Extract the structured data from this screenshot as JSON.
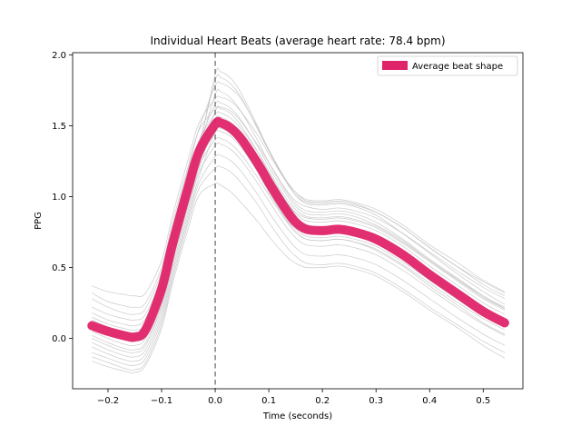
{
  "chart_data": {
    "type": "line",
    "title": "Individual Heart Beats (average heart rate: 78.4 bpm)",
    "xlabel": "Time (seconds)",
    "ylabel": "PPG",
    "xlim": [
      -0.266,
      0.574
    ],
    "ylim": [
      -0.355,
      2.015
    ],
    "xticks": [
      -0.2,
      -0.1,
      0.0,
      0.1,
      0.2,
      0.3,
      0.4,
      0.5
    ],
    "xtick_labels": [
      "−0.2",
      "−0.1",
      "0.0",
      "0.1",
      "0.2",
      "0.3",
      "0.4",
      "0.5"
    ],
    "yticks": [
      0.0,
      0.5,
      1.0,
      1.5,
      2.0
    ],
    "ytick_labels": [
      "0.0",
      "0.5",
      "1.0",
      "1.5",
      "2.0"
    ],
    "grid": false,
    "legend_position": "top-right",
    "vline": {
      "x": 0.0,
      "style": "dashed",
      "color": "#808080"
    },
    "colors": {
      "average": "#e0246a",
      "individual": "#bdbdbd"
    },
    "average": {
      "name": "Average beat shape",
      "x": [
        -0.23,
        -0.2,
        -0.17,
        -0.15,
        -0.13,
        -0.1,
        -0.08,
        -0.05,
        -0.03,
        0.0,
        0.01,
        0.03,
        0.05,
        0.08,
        0.1,
        0.13,
        0.15,
        0.17,
        0.2,
        0.23,
        0.26,
        0.3,
        0.35,
        0.4,
        0.45,
        0.5,
        0.54
      ],
      "y": [
        0.09,
        0.05,
        0.02,
        0.01,
        0.06,
        0.35,
        0.66,
        1.07,
        1.32,
        1.51,
        1.52,
        1.48,
        1.4,
        1.23,
        1.1,
        0.92,
        0.82,
        0.77,
        0.76,
        0.77,
        0.75,
        0.7,
        0.59,
        0.45,
        0.32,
        0.19,
        0.11
      ]
    },
    "individual_beats": {
      "x": [
        -0.23,
        -0.2,
        -0.17,
        -0.15,
        -0.13,
        -0.1,
        -0.08,
        -0.05,
        -0.03,
        0.0,
        0.01,
        0.03,
        0.05,
        0.08,
        0.1,
        0.13,
        0.15,
        0.17,
        0.2,
        0.23,
        0.26,
        0.3,
        0.35,
        0.4,
        0.45,
        0.5,
        0.54
      ],
      "beats": [
        [
          0.37,
          0.33,
          0.31,
          0.3,
          0.32,
          0.55,
          0.86,
          1.27,
          1.52,
          1.69,
          1.7,
          1.67,
          1.59,
          1.43,
          1.3,
          1.12,
          1.03,
          0.98,
          0.97,
          0.98,
          0.96,
          0.91,
          0.8,
          0.66,
          0.54,
          0.41,
          0.33
        ],
        [
          0.32,
          0.26,
          0.23,
          0.22,
          0.25,
          0.5,
          0.81,
          1.22,
          1.47,
          1.62,
          1.63,
          1.6,
          1.52,
          1.36,
          1.24,
          1.06,
          0.97,
          0.93,
          0.91,
          0.92,
          0.9,
          0.85,
          0.74,
          0.61,
          0.48,
          0.36,
          0.28
        ],
        [
          0.28,
          0.22,
          0.18,
          0.17,
          0.21,
          0.47,
          0.78,
          1.2,
          1.48,
          1.78,
          1.8,
          1.76,
          1.68,
          1.48,
          1.33,
          1.13,
          1.03,
          0.97,
          0.96,
          0.97,
          0.95,
          0.89,
          0.78,
          0.64,
          0.51,
          0.38,
          0.3
        ],
        [
          0.22,
          0.17,
          0.14,
          0.13,
          0.17,
          0.43,
          0.74,
          1.15,
          1.4,
          1.58,
          1.59,
          1.55,
          1.47,
          1.31,
          1.18,
          1.0,
          0.91,
          0.86,
          0.85,
          0.86,
          0.84,
          0.79,
          0.68,
          0.55,
          0.42,
          0.3,
          0.22
        ],
        [
          0.18,
          0.13,
          0.1,
          0.09,
          0.14,
          0.4,
          0.71,
          1.12,
          1.38,
          1.65,
          1.66,
          1.62,
          1.53,
          1.35,
          1.21,
          1.03,
          0.93,
          0.88,
          0.87,
          0.88,
          0.86,
          0.8,
          0.69,
          0.55,
          0.42,
          0.29,
          0.21
        ],
        [
          0.15,
          0.1,
          0.07,
          0.06,
          0.1,
          0.37,
          0.68,
          1.09,
          1.35,
          1.55,
          1.56,
          1.52,
          1.44,
          1.28,
          1.15,
          0.98,
          0.89,
          0.85,
          0.84,
          0.85,
          0.83,
          0.78,
          0.67,
          0.54,
          0.41,
          0.28,
          0.2
        ],
        [
          0.12,
          0.07,
          0.04,
          0.03,
          0.07,
          0.34,
          0.65,
          1.06,
          1.33,
          1.72,
          1.74,
          1.69,
          1.59,
          1.39,
          1.24,
          1.05,
          0.95,
          0.9,
          0.89,
          0.9,
          0.88,
          0.82,
          0.7,
          0.56,
          0.43,
          0.3,
          0.21
        ],
        [
          0.1,
          0.05,
          0.02,
          0.0,
          0.05,
          0.32,
          0.63,
          1.04,
          1.3,
          1.48,
          1.49,
          1.45,
          1.37,
          1.2,
          1.08,
          0.9,
          0.81,
          0.76,
          0.75,
          0.76,
          0.74,
          0.69,
          0.58,
          0.45,
          0.32,
          0.2,
          0.12
        ],
        [
          0.08,
          0.03,
          0.0,
          -0.02,
          0.03,
          0.3,
          0.61,
          1.02,
          1.28,
          1.6,
          1.62,
          1.58,
          1.49,
          1.31,
          1.17,
          0.98,
          0.88,
          0.83,
          0.82,
          0.83,
          0.81,
          0.76,
          0.65,
          0.51,
          0.38,
          0.25,
          0.17
        ],
        [
          0.05,
          0.0,
          -0.04,
          -0.05,
          0.0,
          0.27,
          0.58,
          0.99,
          1.25,
          1.45,
          1.46,
          1.42,
          1.34,
          1.17,
          1.04,
          0.86,
          0.77,
          0.72,
          0.71,
          0.72,
          0.7,
          0.65,
          0.54,
          0.41,
          0.28,
          0.16,
          0.08
        ],
        [
          0.02,
          -0.03,
          -0.07,
          -0.08,
          -0.03,
          0.24,
          0.55,
          0.96,
          1.22,
          1.4,
          1.41,
          1.37,
          1.29,
          1.13,
          1.01,
          0.84,
          0.75,
          0.7,
          0.69,
          0.7,
          0.68,
          0.63,
          0.52,
          0.39,
          0.26,
          0.14,
          0.06
        ],
        [
          0.0,
          -0.05,
          -0.09,
          -0.1,
          -0.05,
          0.22,
          0.53,
          0.94,
          1.2,
          1.52,
          1.54,
          1.5,
          1.41,
          1.23,
          1.09,
          0.9,
          0.8,
          0.75,
          0.74,
          0.75,
          0.73,
          0.67,
          0.56,
          0.42,
          0.29,
          0.16,
          0.08
        ],
        [
          -0.03,
          -0.08,
          -0.12,
          -0.13,
          -0.08,
          0.19,
          0.5,
          0.91,
          1.17,
          1.36,
          1.37,
          1.33,
          1.25,
          1.09,
          0.97,
          0.8,
          0.71,
          0.66,
          0.65,
          0.66,
          0.64,
          0.59,
          0.48,
          0.35,
          0.22,
          0.1,
          0.02
        ],
        [
          -0.06,
          -0.11,
          -0.15,
          -0.16,
          -0.11,
          0.16,
          0.47,
          0.88,
          1.14,
          1.46,
          1.48,
          1.44,
          1.35,
          1.17,
          1.03,
          0.85,
          0.75,
          0.7,
          0.69,
          0.7,
          0.68,
          0.62,
          0.51,
          0.37,
          0.24,
          0.11,
          0.03
        ],
        [
          -0.1,
          -0.14,
          -0.18,
          -0.19,
          -0.14,
          0.13,
          0.44,
          0.85,
          1.1,
          1.28,
          1.29,
          1.25,
          1.17,
          1.01,
          0.89,
          0.73,
          0.64,
          0.59,
          0.58,
          0.59,
          0.57,
          0.52,
          0.41,
          0.28,
          0.15,
          0.03,
          -0.05
        ],
        [
          -0.13,
          -0.17,
          -0.21,
          -0.22,
          -0.17,
          0.1,
          0.41,
          0.82,
          1.06,
          1.2,
          1.21,
          1.17,
          1.09,
          0.94,
          0.82,
          0.66,
          0.58,
          0.53,
          0.52,
          0.53,
          0.51,
          0.46,
          0.35,
          0.22,
          0.1,
          -0.02,
          -0.1
        ],
        [
          -0.16,
          -0.2,
          -0.23,
          -0.24,
          -0.19,
          0.07,
          0.38,
          0.78,
          1.01,
          1.09,
          1.08,
          1.03,
          0.95,
          0.82,
          0.72,
          0.59,
          0.53,
          0.5,
          0.5,
          0.51,
          0.49,
          0.44,
          0.33,
          0.2,
          0.08,
          -0.05,
          -0.14
        ],
        [
          0.06,
          0.02,
          -0.01,
          -0.02,
          0.03,
          0.31,
          0.63,
          1.06,
          1.35,
          1.86,
          1.88,
          1.83,
          1.72,
          1.49,
          1.33,
          1.12,
          1.01,
          0.95,
          0.94,
          0.95,
          0.93,
          0.87,
          0.74,
          0.6,
          0.46,
          0.33,
          0.24
        ],
        [
          0.13,
          0.08,
          0.05,
          0.04,
          0.08,
          0.35,
          0.66,
          1.08,
          1.36,
          1.82,
          1.84,
          1.79,
          1.69,
          1.47,
          1.32,
          1.12,
          1.01,
          0.96,
          0.95,
          0.96,
          0.94,
          0.89,
          0.78,
          0.64,
          0.51,
          0.4,
          0.32
        ]
      ]
    }
  }
}
